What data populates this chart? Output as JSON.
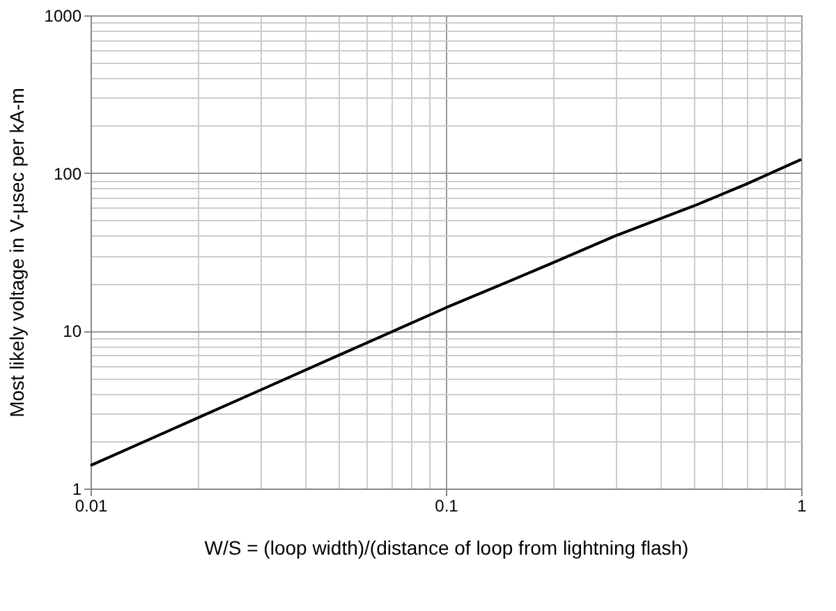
{
  "chart_data": {
    "type": "line",
    "xlabel": "W/S = (loop width)/(distance of loop from lightning flash)",
    "ylabel": "Most likely voltage in V-µsec per kA-m",
    "x": [
      0.01,
      0.02,
      0.03,
      0.05,
      0.07,
      0.1,
      0.15,
      0.2,
      0.3,
      0.5,
      0.7,
      1
    ],
    "series": [
      {
        "color": "#000000",
        "values": [
          1.4,
          2.8,
          4.2,
          7,
          9.8,
          14,
          20.5,
          27,
          40,
          62,
          85,
          122
        ]
      }
    ],
    "log": "xy",
    "xlim": [
      0.01,
      1
    ],
    "ylim": [
      1,
      1000
    ],
    "xticks": [
      0.01,
      0.1,
      1
    ],
    "yticks": [
      1,
      10,
      100,
      1000
    ],
    "grid": true,
    "legend": false,
    "marker": "none",
    "line_style": "solid"
  }
}
